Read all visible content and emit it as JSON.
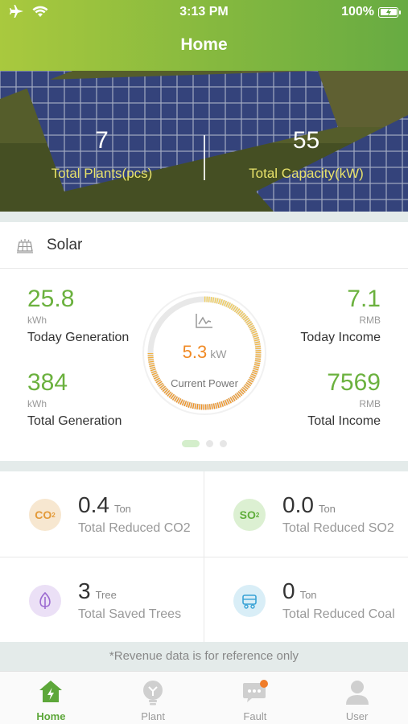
{
  "status_bar": {
    "time": "3:13 PM",
    "battery": "100%"
  },
  "header": {
    "title": "Home"
  },
  "overview": {
    "total_plants": {
      "value": "7",
      "label": "Total Plants(pcs)"
    },
    "total_capacity": {
      "value": "55",
      "label": "Total Capacity(kW)"
    }
  },
  "solar": {
    "title": "Solar",
    "today_generation": {
      "value": "25.8",
      "unit": "kWh",
      "label": "Today Generation"
    },
    "total_generation": {
      "value": "384",
      "unit": "kWh",
      "label": "Total Generation"
    },
    "today_income": {
      "value": "7.1",
      "unit": "RMB",
      "label": "Today Income"
    },
    "total_income": {
      "value": "7569",
      "unit": "RMB",
      "label": "Total Income"
    },
    "current_power": {
      "value": "5.3",
      "unit": "kW",
      "label": "Current Power"
    }
  },
  "impact": {
    "co2": {
      "icon_text": "CO",
      "icon_sub": "2",
      "value": "0.4",
      "unit": "Ton",
      "label": "Total Reduced CO2"
    },
    "so2": {
      "icon_text": "SO",
      "icon_sub": "2",
      "value": "0.0",
      "unit": "Ton",
      "label": "Total Reduced SO2"
    },
    "trees": {
      "value": "3",
      "unit": "Tree",
      "label": "Total Saved Trees"
    },
    "coal": {
      "value": "0",
      "unit": "Ton",
      "label": "Total Reduced Coal"
    }
  },
  "notice": "*Revenue data is for reference only",
  "tabs": [
    {
      "label": "Home",
      "icon": "home-bolt-icon"
    },
    {
      "label": "Plant",
      "icon": "plant-icon"
    },
    {
      "label": "Fault",
      "icon": "chat-icon"
    },
    {
      "label": "User",
      "icon": "user-icon"
    }
  ],
  "colors": {
    "accent": "#6bb13e",
    "power": "#f08a25",
    "header_start": "#a9c93e",
    "header_end": "#67ab42"
  }
}
